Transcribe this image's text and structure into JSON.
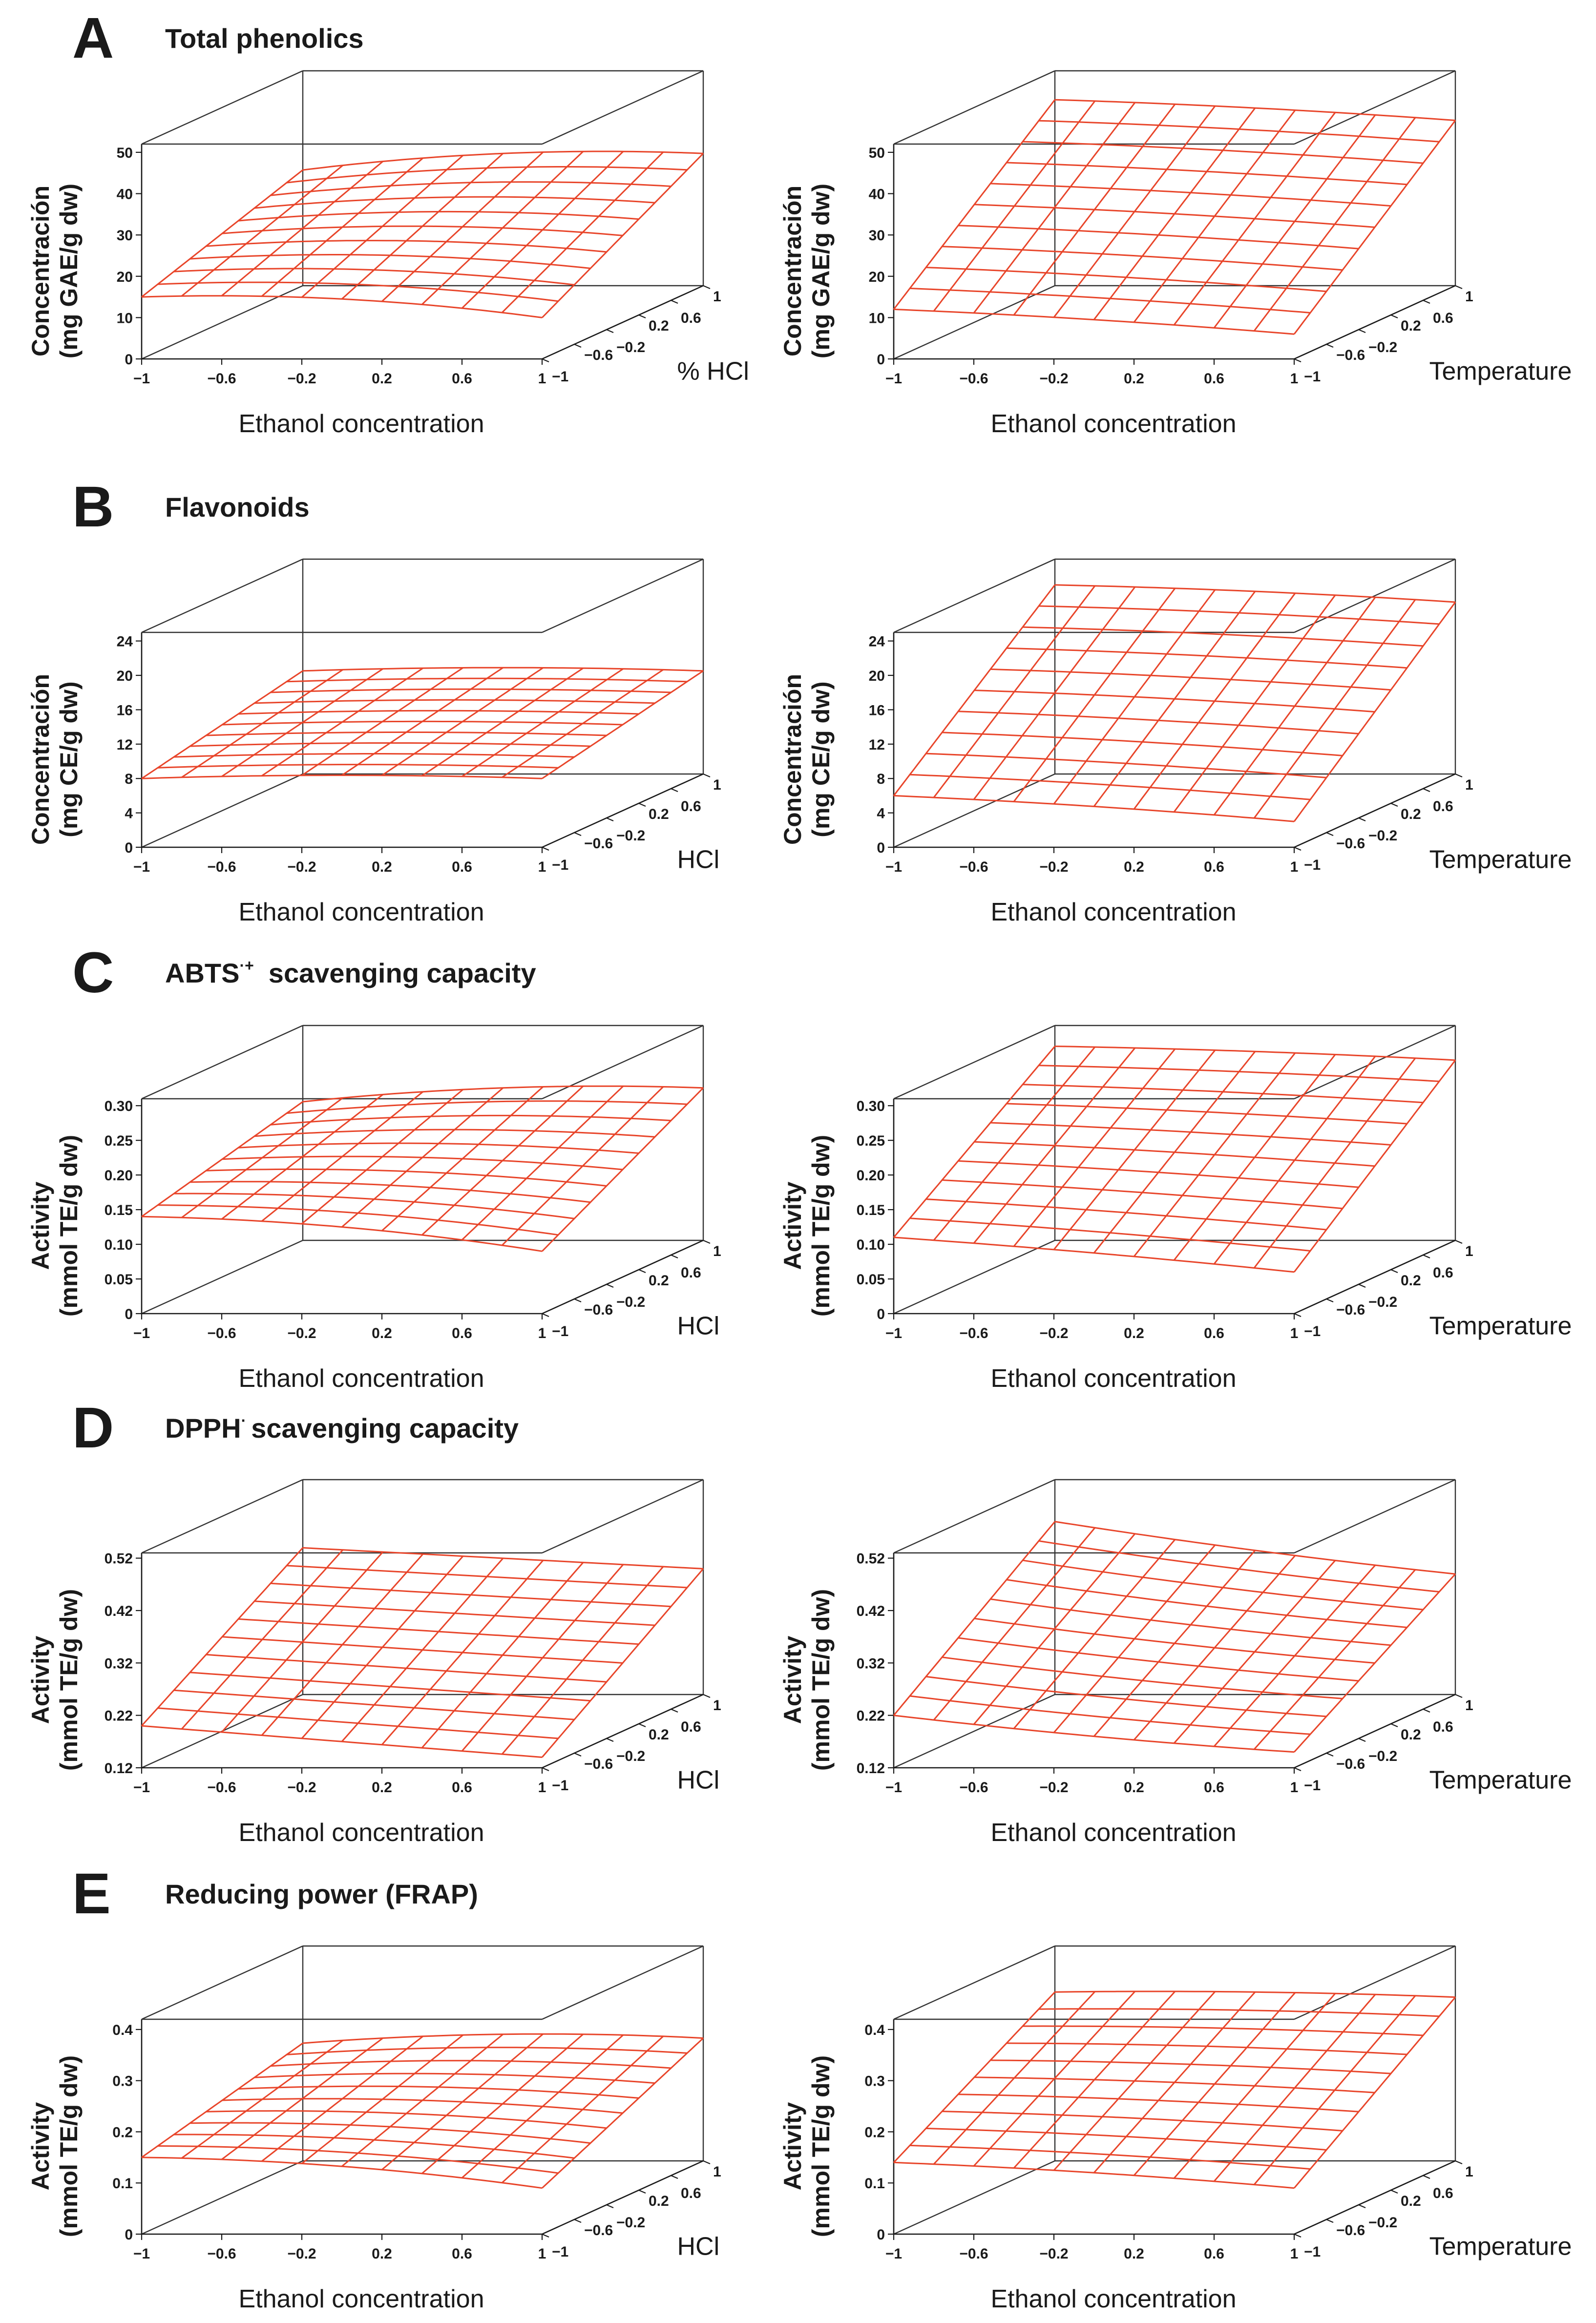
{
  "figure": {
    "colors": {
      "mesh": "#e8452a",
      "axes": "#1a1a1a",
      "box": "#333333"
    },
    "panels": [
      {
        "letter": "A",
        "title": "Total phenolics",
        "title_superscript": ""
      },
      {
        "letter": "B",
        "title": "Flavonoids",
        "title_superscript": ""
      },
      {
        "letter": "C",
        "title": "ABTS",
        "title_superscript": "·+",
        "title_rest": "scavenging capacity"
      },
      {
        "letter": "D",
        "title": "DPPH",
        "title_superscript": "·",
        "title_rest": "scavenging capacity"
      },
      {
        "letter": "E",
        "title": "Reducing power (FRAP)",
        "title_superscript": ""
      }
    ]
  },
  "chart_data": [
    {
      "id": "A-left",
      "type": "surface3d",
      "panel": "A",
      "ylabel_line1": "Concentración",
      "ylabel_line2": "(mg GAE/g dw)",
      "xlabel": "Ethanol concentration",
      "zlabel": "% HCl",
      "x_ticks": [
        "−1",
        "−0.6",
        "−0.2",
        "0.2",
        "0.6",
        "1"
      ],
      "z_ticks": [
        "−1",
        "−0.6",
        "−0.2",
        "0.2",
        "0.6",
        "1"
      ],
      "y_ticks": [
        "0",
        "10",
        "20",
        "30",
        "40",
        "50"
      ],
      "ylim": [
        0,
        52
      ],
      "surface": {
        "base": 26,
        "x_linear": 3,
        "x_quad": -8,
        "z_linear": 4,
        "z_quad": 0,
        "xz": 0
      },
      "corners": {
        "front_left": 15,
        "front_right": 10,
        "back_left": 28,
        "back_right": 32
      }
    },
    {
      "id": "A-right",
      "type": "surface3d",
      "panel": "A",
      "ylabel_line1": "Concentración",
      "ylabel_line2": "(mg GAE/g dw)",
      "xlabel": "Ethanol concentration",
      "zlabel": "Temperature",
      "x_ticks": [
        "−1",
        "−0.6",
        "−0.2",
        "0.2",
        "0.6",
        "1"
      ],
      "z_ticks": [
        "−1",
        "−0.6",
        "−0.2",
        "0.2",
        "0.6",
        "1"
      ],
      "y_ticks": [
        "0",
        "10",
        "20",
        "30",
        "40",
        "50"
      ],
      "ylim": [
        0,
        52
      ],
      "surface": {
        "base": 27,
        "x_linear": -3,
        "x_quad": -2,
        "z_linear": 14,
        "z_quad": 5,
        "xz": 0
      },
      "corners": {
        "front_left": 12,
        "front_right": 6,
        "back_left": 45,
        "back_right": 40
      }
    },
    {
      "id": "B-left",
      "type": "surface3d",
      "panel": "B",
      "ylabel_line1": "Concentración",
      "ylabel_line2": "(mg CE/g dw)",
      "xlabel": "Ethanol concentration",
      "zlabel": "HCl",
      "x_ticks": [
        "−1",
        "−0.6",
        "−0.2",
        "0.2",
        "0.6",
        "1"
      ],
      "z_ticks": [
        "−1",
        "−0.6",
        "−0.2",
        "0.2",
        "0.6",
        "1"
      ],
      "y_ticks": [
        "0",
        "4",
        "8",
        "12",
        "16",
        "20",
        "24"
      ],
      "ylim": [
        0,
        25
      ],
      "surface": {
        "base": 11.5,
        "x_linear": 0.5,
        "x_quad": -1.5,
        "z_linear": 1.5,
        "z_quad": 0,
        "xz": 0
      },
      "corners": {
        "front_left": 8,
        "front_right": 8,
        "back_left": 12,
        "back_right": 12
      }
    },
    {
      "id": "B-right",
      "type": "surface3d",
      "panel": "B",
      "ylabel_line1": "Concentración",
      "ylabel_line2": "(mg CE/g dw)",
      "xlabel": "Ethanol concentration",
      "zlabel": "Temperature",
      "x_ticks": [
        "−1",
        "−0.6",
        "−0.2",
        "0.2",
        "0.6",
        "1"
      ],
      "z_ticks": [
        "−1",
        "−0.6",
        "−0.2",
        "0.2",
        "0.6",
        "1"
      ],
      "y_ticks": [
        "0",
        "4",
        "8",
        "12",
        "16",
        "20",
        "24"
      ],
      "ylim": [
        0,
        25
      ],
      "surface": {
        "base": 13,
        "x_linear": -1,
        "x_quad": -1,
        "z_linear": 7,
        "z_quad": 3,
        "xz": 0
      },
      "corners": {
        "front_left": 6,
        "front_right": 3,
        "back_left": 22,
        "back_right": 20
      }
    },
    {
      "id": "C-left",
      "type": "surface3d",
      "panel": "C",
      "ylabel_line1": "Activity",
      "ylabel_line2": "(mmol TE/g dw)",
      "xlabel": "Ethanol concentration",
      "zlabel": "HCl",
      "x_ticks": [
        "−1",
        "−0.6",
        "−0.2",
        "0.2",
        "0.6",
        "1"
      ],
      "z_ticks": [
        "−1",
        "−0.6",
        "−0.2",
        "0.2",
        "0.6",
        "1"
      ],
      "y_ticks": [
        "0",
        "0.05",
        "0.10",
        "0.15",
        "0.20",
        "0.25",
        "0.30"
      ],
      "ylim": [
        0,
        0.31
      ],
      "surface": {
        "base": 0.155,
        "x_linear": 0.02,
        "x_quad": -0.04,
        "z_linear": 0.02,
        "z_quad": 0,
        "xz": 0
      },
      "corners": {
        "front_left": 0.14,
        "front_right": 0.09,
        "back_left": 0.2,
        "back_right": 0.22
      }
    },
    {
      "id": "C-right",
      "type": "surface3d",
      "panel": "C",
      "ylabel_line1": "Activity",
      "ylabel_line2": "(mmol TE/g dw)",
      "xlabel": "Ethanol concentration",
      "zlabel": "Temperature",
      "x_ticks": [
        "−1",
        "−0.6",
        "−0.2",
        "0.2",
        "0.6",
        "1"
      ],
      "z_ticks": [
        "−1",
        "−0.6",
        "−0.2",
        "0.2",
        "0.6",
        "1"
      ],
      "y_ticks": [
        "0",
        "0.05",
        "0.10",
        "0.15",
        "0.20",
        "0.25",
        "0.30"
      ],
      "ylim": [
        0,
        0.31
      ],
      "surface": {
        "base": 0.17,
        "x_linear": -0.015,
        "x_quad": -0.01,
        "z_linear": 0.08,
        "z_quad": 0.03,
        "xz": 0
      },
      "corners": {
        "front_left": 0.11,
        "front_right": 0.06,
        "back_left": 0.28,
        "back_right": 0.26
      }
    },
    {
      "id": "D-left",
      "type": "surface3d",
      "panel": "D",
      "ylabel_line1": "Activity",
      "ylabel_line2": "(mmol TE/g dw)",
      "xlabel": "Ethanol concentration",
      "zlabel": "HCl",
      "x_ticks": [
        "−1",
        "−0.6",
        "−0.2",
        "0.2",
        "0.6",
        "1"
      ],
      "z_ticks": [
        "−1",
        "−0.6",
        "−0.2",
        "0.2",
        "0.6",
        "1"
      ],
      "y_ticks": [
        "0.12",
        "0.22",
        "0.32",
        "0.42",
        "0.52"
      ],
      "ylim": [
        0.12,
        0.53
      ],
      "surface": {
        "base": 0.28,
        "x_linear": -0.01,
        "x_quad": 0,
        "z_linear": 0.1,
        "z_quad": 0,
        "xz": -0.02
      },
      "corners": {
        "front_left": 0.2,
        "front_right": 0.14,
        "back_left": 0.4,
        "back_right": 0.36
      }
    },
    {
      "id": "D-right",
      "type": "surface3d",
      "panel": "D",
      "ylabel_line1": "Activity",
      "ylabel_line2": "(mmol TE/g dw)",
      "xlabel": "Ethanol concentration",
      "zlabel": "Temperature",
      "x_ticks": [
        "−1",
        "−0.6",
        "−0.2",
        "0.2",
        "0.6",
        "1"
      ],
      "z_ticks": [
        "−1",
        "−0.6",
        "−0.2",
        "0.2",
        "0.6",
        "1"
      ],
      "y_ticks": [
        "0.12",
        "0.22",
        "0.32",
        "0.42",
        "0.52"
      ],
      "ylim": [
        0.12,
        0.53
      ],
      "surface": {
        "base": 0.3,
        "x_linear": -0.03,
        "x_quad": 0.02,
        "z_linear": 0.08,
        "z_quad": 0.03,
        "xz": -0.02
      },
      "corners": {
        "front_left": 0.22,
        "front_right": 0.15,
        "back_left": 0.45,
        "back_right": 0.35
      }
    },
    {
      "id": "E-left",
      "type": "surface3d",
      "panel": "E",
      "ylabel_line1": "Activity",
      "ylabel_line2": "(mmol TE/g dw)",
      "xlabel": "Ethanol concentration",
      "zlabel": "HCl",
      "x_ticks": [
        "−1",
        "−0.6",
        "−0.2",
        "0.2",
        "0.6",
        "1"
      ],
      "z_ticks": [
        "−1",
        "−0.6",
        "−0.2",
        "0.2",
        "0.6",
        "1"
      ],
      "y_ticks": [
        "0",
        "0.1",
        "0.2",
        "0.3",
        "0.4"
      ],
      "ylim": [
        0,
        0.42
      ],
      "surface": {
        "base": 0.2,
        "x_linear": 0.02,
        "x_quad": -0.05,
        "z_linear": 0.03,
        "z_quad": 0,
        "xz": 0
      },
      "corners": {
        "front_left": 0.15,
        "front_right": 0.09,
        "back_left": 0.23,
        "back_right": 0.24
      }
    },
    {
      "id": "E-right",
      "type": "surface3d",
      "panel": "E",
      "ylabel_line1": "Activity",
      "ylabel_line2": "(mmol TE/g dw)",
      "xlabel": "Ethanol concentration",
      "zlabel": "Temperature",
      "x_ticks": [
        "−1",
        "−0.6",
        "−0.2",
        "0.2",
        "0.6",
        "1"
      ],
      "z_ticks": [
        "−1",
        "−0.6",
        "−0.2",
        "0.2",
        "0.6",
        "1"
      ],
      "y_ticks": [
        "0",
        "0.1",
        "0.2",
        "0.3",
        "0.4"
      ],
      "ylim": [
        0,
        0.42
      ],
      "surface": {
        "base": 0.22,
        "x_linear": -0.01,
        "x_quad": -0.02,
        "z_linear": 0.08,
        "z_quad": 0.02,
        "xz": 0
      },
      "corners": {
        "front_left": 0.14,
        "front_right": 0.09,
        "back_left": 0.33,
        "back_right": 0.32
      }
    }
  ]
}
